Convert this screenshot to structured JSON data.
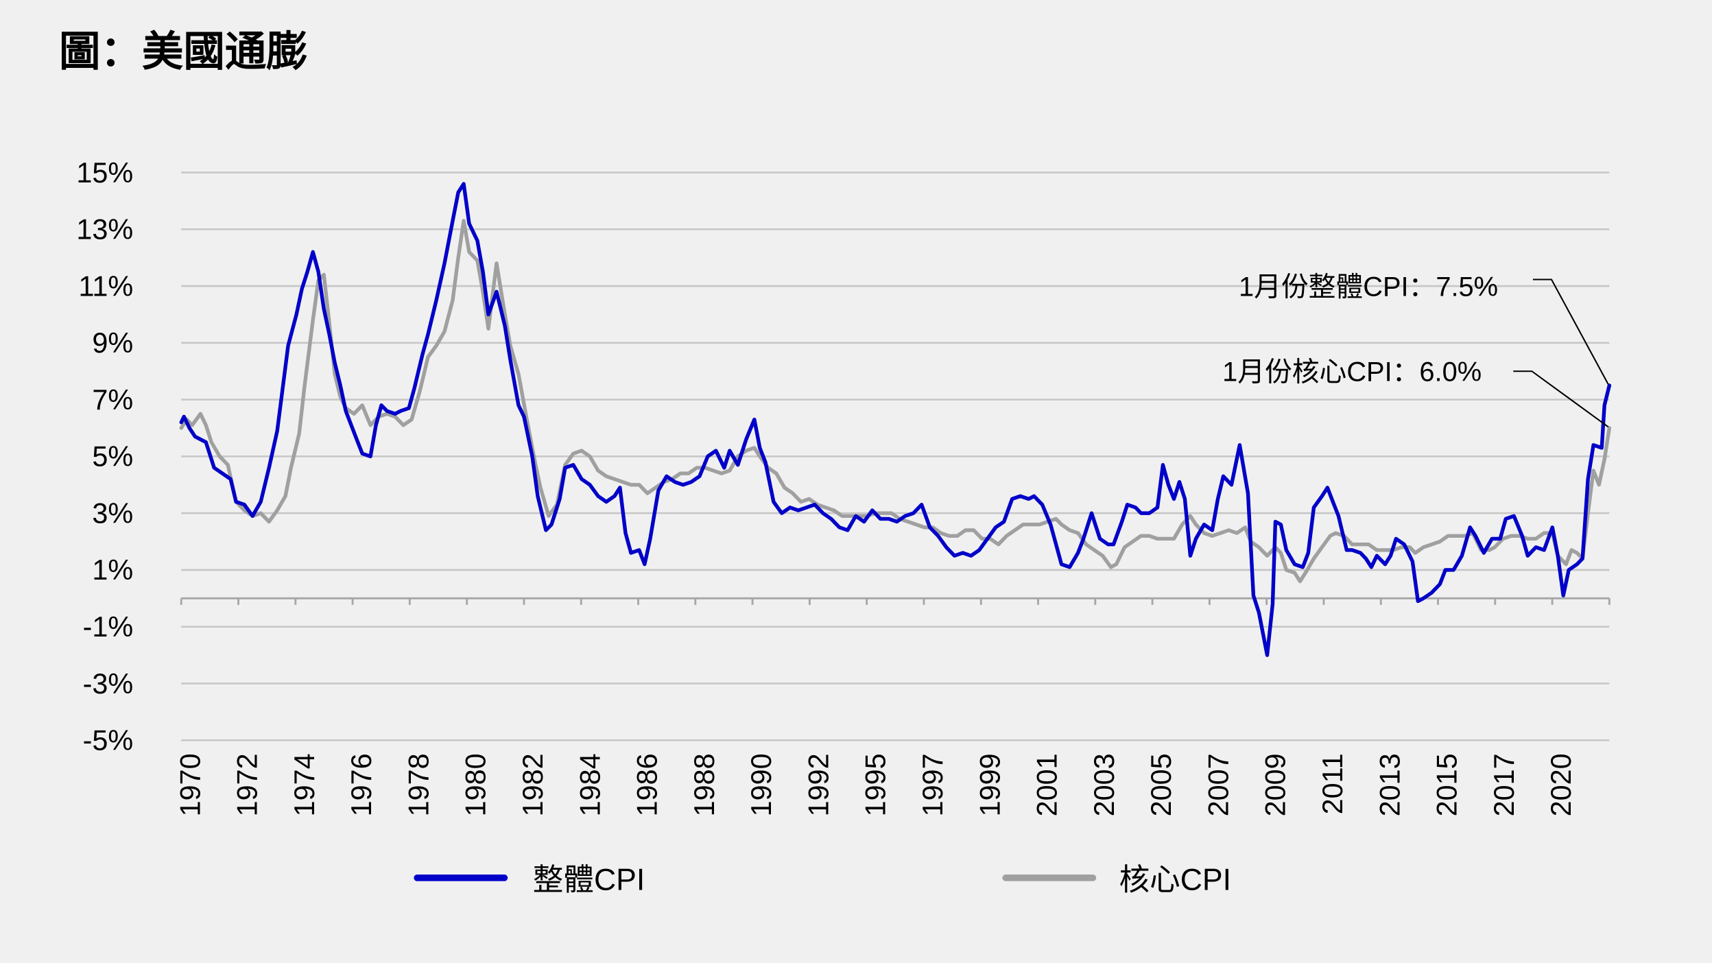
{
  "title": "圖：美國通膨",
  "legend": [
    {
      "label": "整體CPI",
      "color": "#0000c8"
    },
    {
      "label": "核心CPI",
      "color": "#a0a0a0"
    }
  ],
  "annotations": {
    "headline": "1月份整體CPI：7.5%",
    "core": "1月份核心CPI：6.0%"
  },
  "chart_data": {
    "type": "line",
    "title": "圖：美國通膨",
    "xlabel": "",
    "ylabel": "",
    "ylim": [
      -5,
      15
    ],
    "xlim": [
      1970,
      2022.08
    ],
    "grid": true,
    "legend_position": "bottom",
    "y_ticks": [
      "15%",
      "13%",
      "11%",
      "9%",
      "7%",
      "5%",
      "3%",
      "1%",
      "-1%",
      "-3%",
      "-5%"
    ],
    "y_tick_values": [
      15,
      13,
      11,
      9,
      7,
      5,
      3,
      1,
      -1,
      -3,
      -5
    ],
    "x_tick_labels": [
      "1970",
      "1972",
      "1974",
      "1976",
      "1978",
      "1980",
      "1982",
      "1984",
      "1986",
      "1988",
      "1990",
      "1992",
      "1995",
      "1997",
      "1999",
      "2001",
      "2003",
      "2005",
      "2007",
      "2009",
      "2011",
      "2013",
      "2015",
      "2017",
      "2020"
    ],
    "annotations": [
      {
        "text": "1月份整體CPI：7.5%",
        "series": "整體CPI",
        "x": 2022.08,
        "y": 7.5
      },
      {
        "text": "1月份核心CPI：6.0%",
        "series": "核心CPI",
        "x": 2022.08,
        "y": 6.0
      }
    ],
    "series": [
      {
        "name": "整體CPI",
        "color": "#0000c8",
        "x": [
          1970.0,
          1970.1,
          1970.3,
          1970.5,
          1970.9,
          1971.2,
          1971.5,
          1971.8,
          1972.0,
          1972.3,
          1972.6,
          1972.9,
          1973.2,
          1973.5,
          1973.7,
          1973.9,
          1974.2,
          1974.4,
          1974.6,
          1974.8,
          1975.0,
          1975.2,
          1975.4,
          1975.6,
          1975.8,
          1976.0,
          1976.2,
          1976.4,
          1976.6,
          1976.9,
          1977.1,
          1977.3,
          1977.5,
          1977.8,
          1978.0,
          1978.3,
          1978.5,
          1978.8,
          1979.0,
          1979.3,
          1979.6,
          1979.9,
          1980.1,
          1980.3,
          1980.5,
          1980.8,
          1981.0,
          1981.2,
          1981.5,
          1981.8,
          1982.0,
          1982.3,
          1982.5,
          1982.8,
          1983.0,
          1983.3,
          1983.5,
          1983.8,
          1984.0,
          1984.3,
          1984.6,
          1984.9,
          1985.2,
          1985.5,
          1985.8,
          1986.0,
          1986.2,
          1986.4,
          1986.7,
          1986.9,
          1987.1,
          1987.4,
          1987.7,
          1988.0,
          1988.3,
          1988.6,
          1988.9,
          1989.2,
          1989.5,
          1989.8,
          1990.0,
          1990.3,
          1990.6,
          1990.9,
          1991.1,
          1991.3,
          1991.6,
          1991.9,
          1992.2,
          1992.5,
          1992.8,
          1993.1,
          1993.4,
          1993.7,
          1994.0,
          1994.3,
          1994.6,
          1994.9,
          1995.2,
          1995.5,
          1995.8,
          1996.1,
          1996.4,
          1996.7,
          1997.0,
          1997.3,
          1997.6,
          1997.9,
          1998.2,
          1998.5,
          1998.8,
          1999.1,
          1999.4,
          1999.7,
          2000.0,
          2000.3,
          2000.6,
          2000.9,
          2001.1,
          2001.4,
          2001.7,
          2001.9,
          2002.1,
          2002.4,
          2002.7,
          2002.9,
          2003.2,
          2003.5,
          2003.8,
          2004.0,
          2004.3,
          2004.5,
          2004.8,
          2005.0,
          2005.3,
          2005.6,
          2005.8,
          2006.0,
          2006.2,
          2006.4,
          2006.6,
          2006.8,
          2007.0,
          2007.3,
          2007.6,
          2007.8,
          2008.0,
          2008.3,
          2008.6,
          2008.9,
          2009.1,
          2009.3,
          2009.6,
          2009.8,
          2009.9,
          2010.1,
          2010.3,
          2010.6,
          2010.9,
          2011.1,
          2011.3,
          2011.6,
          2011.8,
          2012.0,
          2012.2,
          2012.5,
          2012.7,
          2013.0,
          2013.2,
          2013.4,
          2013.6,
          2013.9,
          2014.1,
          2014.3,
          2014.6,
          2014.9,
          2015.1,
          2015.3,
          2015.6,
          2015.9,
          2016.1,
          2016.4,
          2016.7,
          2017.0,
          2017.2,
          2017.5,
          2017.8,
          2018.1,
          2018.3,
          2018.6,
          2018.9,
          2019.1,
          2019.4,
          2019.7,
          2020.0,
          2020.2,
          2020.4,
          2020.6,
          2020.9,
          2021.1,
          2021.3,
          2021.5,
          2021.8,
          2021.9,
          2022.08
        ],
        "values": [
          6.2,
          6.4,
          6.0,
          5.7,
          5.5,
          4.6,
          4.4,
          4.2,
          3.4,
          3.3,
          2.9,
          3.4,
          4.6,
          5.9,
          7.4,
          8.9,
          10.0,
          10.9,
          11.5,
          12.2,
          11.5,
          10.2,
          9.3,
          8.3,
          7.5,
          6.6,
          6.1,
          5.6,
          5.1,
          5.0,
          6.1,
          6.8,
          6.6,
          6.5,
          6.6,
          6.7,
          7.4,
          8.6,
          9.3,
          10.5,
          11.8,
          13.3,
          14.3,
          14.6,
          13.2,
          12.6,
          11.5,
          10.0,
          10.8,
          9.6,
          8.4,
          6.8,
          6.4,
          5.0,
          3.6,
          2.4,
          2.6,
          3.5,
          4.6,
          4.7,
          4.2,
          4.0,
          3.6,
          3.4,
          3.6,
          3.9,
          2.3,
          1.6,
          1.7,
          1.2,
          2.1,
          3.8,
          4.3,
          4.1,
          4.0,
          4.1,
          4.3,
          5.0,
          5.2,
          4.6,
          5.2,
          4.7,
          5.6,
          6.3,
          5.3,
          4.8,
          3.4,
          3.0,
          3.2,
          3.1,
          3.2,
          3.3,
          3.0,
          2.8,
          2.5,
          2.4,
          2.9,
          2.7,
          3.1,
          2.8,
          2.8,
          2.7,
          2.9,
          3.0,
          3.3,
          2.5,
          2.2,
          1.8,
          1.5,
          1.6,
          1.5,
          1.7,
          2.1,
          2.5,
          2.7,
          3.5,
          3.6,
          3.5,
          3.6,
          3.3,
          2.6,
          1.9,
          1.2,
          1.1,
          1.6,
          2.1,
          3.0,
          2.1,
          1.9,
          1.9,
          2.7,
          3.3,
          3.2,
          3.0,
          3.0,
          3.2,
          4.7,
          4.0,
          3.5,
          4.1,
          3.5,
          1.5,
          2.1,
          2.6,
          2.4,
          3.5,
          4.3,
          4.0,
          5.4,
          3.7,
          0.1,
          -0.5,
          -2.0,
          -0.2,
          2.7,
          2.6,
          1.7,
          1.2,
          1.1,
          1.6,
          3.2,
          3.6,
          3.9,
          3.4,
          2.9,
          1.7,
          1.7,
          1.6,
          1.4,
          1.1,
          1.5,
          1.2,
          1.5,
          2.1,
          1.9,
          1.3,
          -0.1,
          0.0,
          0.2,
          0.5,
          1.0,
          1.0,
          1.5,
          2.5,
          2.2,
          1.6,
          2.1,
          2.1,
          2.8,
          2.9,
          2.2,
          1.5,
          1.8,
          1.7,
          2.5,
          1.5,
          0.1,
          1.0,
          1.2,
          1.4,
          4.2,
          5.4,
          5.3,
          6.8,
          7.5
        ]
      },
      {
        "name": "核心CPI",
        "color": "#a0a0a0",
        "x": [
          1970.0,
          1970.2,
          1970.4,
          1970.7,
          1970.9,
          1971.1,
          1971.4,
          1971.7,
          1972.0,
          1972.3,
          1972.6,
          1972.9,
          1973.2,
          1973.5,
          1973.8,
          1974.0,
          1974.3,
          1974.5,
          1974.8,
          1975.0,
          1975.2,
          1975.4,
          1975.6,
          1975.8,
          1976.0,
          1976.3,
          1976.6,
          1976.9,
          1977.2,
          1977.5,
          1977.8,
          1978.1,
          1978.4,
          1978.7,
          1979.0,
          1979.3,
          1979.6,
          1979.9,
          1980.1,
          1980.3,
          1980.5,
          1980.8,
          1981.0,
          1981.2,
          1981.5,
          1981.8,
          1982.0,
          1982.3,
          1982.6,
          1982.9,
          1983.1,
          1983.4,
          1983.7,
          1984.0,
          1984.3,
          1984.6,
          1984.9,
          1985.2,
          1985.5,
          1985.8,
          1986.1,
          1986.4,
          1986.7,
          1987.0,
          1987.3,
          1987.6,
          1987.9,
          1988.2,
          1988.5,
          1988.8,
          1989.1,
          1989.4,
          1989.7,
          1990.0,
          1990.3,
          1990.6,
          1990.9,
          1991.1,
          1991.4,
          1991.7,
          1992.0,
          1992.3,
          1992.6,
          1992.9,
          1993.2,
          1993.5,
          1993.8,
          1994.1,
          1994.4,
          1994.7,
          1995.0,
          1995.3,
          1995.6,
          1995.9,
          1996.2,
          1996.5,
          1996.8,
          1997.1,
          1997.4,
          1997.7,
          1998.0,
          1998.3,
          1998.6,
          1998.9,
          1999.2,
          1999.5,
          1999.8,
          2000.1,
          2000.4,
          2000.7,
          2001.0,
          2001.3,
          2001.6,
          2001.9,
          2002.1,
          2002.4,
          2002.7,
          2003.0,
          2003.3,
          2003.6,
          2003.9,
          2004.1,
          2004.4,
          2004.7,
          2005.0,
          2005.3,
          2005.6,
          2005.9,
          2006.2,
          2006.5,
          2006.8,
          2007.0,
          2007.3,
          2007.6,
          2007.9,
          2008.2,
          2008.5,
          2008.8,
          2009.0,
          2009.3,
          2009.6,
          2009.9,
          2010.1,
          2010.3,
          2010.6,
          2010.8,
          2011.0,
          2011.3,
          2011.6,
          2011.9,
          2012.1,
          2012.4,
          2012.7,
          2013.0,
          2013.3,
          2013.6,
          2013.9,
          2014.2,
          2014.5,
          2014.8,
          2015.0,
          2015.3,
          2015.6,
          2015.9,
          2016.2,
          2016.5,
          2016.8,
          2017.1,
          2017.4,
          2017.7,
          2017.9,
          2018.2,
          2018.5,
          2018.8,
          2019.1,
          2019.4,
          2019.7,
          2020.0,
          2020.2,
          2020.5,
          2020.7,
          2020.9,
          2021.1,
          2021.3,
          2021.5,
          2021.7,
          2021.9,
          2022.08
        ],
        "values": [
          6.0,
          6.3,
          6.1,
          6.5,
          6.1,
          5.5,
          5.0,
          4.7,
          3.4,
          3.1,
          2.9,
          3.0,
          2.7,
          3.1,
          3.6,
          4.6,
          5.8,
          7.5,
          9.8,
          11.2,
          11.4,
          9.7,
          7.9,
          7.1,
          6.7,
          6.5,
          6.8,
          6.1,
          6.4,
          6.5,
          6.4,
          6.1,
          6.3,
          7.3,
          8.5,
          8.9,
          9.4,
          10.5,
          12.0,
          13.3,
          12.2,
          11.9,
          10.8,
          9.5,
          11.8,
          10.0,
          8.9,
          7.9,
          6.3,
          4.8,
          3.9,
          2.9,
          3.3,
          4.7,
          5.1,
          5.2,
          5.0,
          4.5,
          4.3,
          4.2,
          4.1,
          4.0,
          4.0,
          3.7,
          3.9,
          4.1,
          4.2,
          4.4,
          4.4,
          4.6,
          4.6,
          4.5,
          4.4,
          4.5,
          5.0,
          5.2,
          5.3,
          5.0,
          4.6,
          4.4,
          3.9,
          3.7,
          3.4,
          3.5,
          3.3,
          3.2,
          3.1,
          2.9,
          2.9,
          2.9,
          2.9,
          3.0,
          3.0,
          3.0,
          2.8,
          2.7,
          2.6,
          2.5,
          2.5,
          2.3,
          2.2,
          2.2,
          2.4,
          2.4,
          2.1,
          2.1,
          1.9,
          2.2,
          2.4,
          2.6,
          2.6,
          2.6,
          2.7,
          2.8,
          2.6,
          2.4,
          2.3,
          1.9,
          1.7,
          1.5,
          1.1,
          1.2,
          1.8,
          2.0,
          2.2,
          2.2,
          2.1,
          2.1,
          2.1,
          2.6,
          2.9,
          2.6,
          2.3,
          2.2,
          2.3,
          2.4,
          2.3,
          2.5,
          2.0,
          1.8,
          1.5,
          1.8,
          1.6,
          1.0,
          0.9,
          0.6,
          0.9,
          1.4,
          1.8,
          2.2,
          2.3,
          2.2,
          1.9,
          1.9,
          1.9,
          1.7,
          1.7,
          1.7,
          1.8,
          1.8,
          1.6,
          1.8,
          1.9,
          2.0,
          2.2,
          2.2,
          2.2,
          2.3,
          1.7,
          1.7,
          1.8,
          2.1,
          2.2,
          2.2,
          2.1,
          2.1,
          2.3,
          2.3,
          1.5,
          1.2,
          1.7,
          1.6,
          1.4,
          3.0,
          4.5,
          4.0,
          4.9,
          6.0
        ]
      }
    ]
  }
}
